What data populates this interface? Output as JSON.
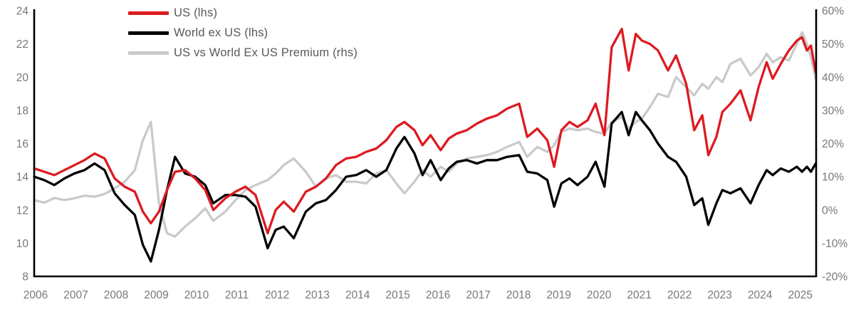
{
  "chart_data": {
    "type": "line",
    "title": "",
    "grid": false,
    "legend_position": "top-left",
    "background": "#ffffff",
    "axis_line_color": "#000000",
    "tick_text_color": "#77787b",
    "legend_text_color": "#58595b",
    "x_axis": {
      "min": 2006.0,
      "max": 2025.43,
      "tick_labels": [
        "2006",
        "2007",
        "2008",
        "2009",
        "2010",
        "2011",
        "2012",
        "2013",
        "2014",
        "2015",
        "2016",
        "2017",
        "2018",
        "2019",
        "2020",
        "2021",
        "2022",
        "2023",
        "2024",
        "2025"
      ],
      "tick_values": [
        2006,
        2007,
        2008,
        2009,
        2010,
        2011,
        2012,
        2013,
        2014,
        2015,
        2016,
        2017,
        2018,
        2019,
        2020,
        2021,
        2022,
        2023,
        2024,
        2025
      ]
    },
    "left_axis": {
      "min": 8,
      "max": 24,
      "tick_labels": [
        "8",
        "10",
        "12",
        "14",
        "16",
        "18",
        "20",
        "22",
        "24"
      ],
      "tick_values": [
        8,
        10,
        12,
        14,
        16,
        18,
        20,
        22,
        24
      ]
    },
    "right_axis": {
      "min": -20,
      "max": 60,
      "tick_labels": [
        "-20%",
        "-10%",
        "0%",
        "10%",
        "20%",
        "30%",
        "40%",
        "50%",
        "60%"
      ],
      "tick_values": [
        -20,
        -10,
        0,
        10,
        20,
        30,
        40,
        50,
        60
      ]
    },
    "x": [
      2006.0,
      2006.25,
      2006.5,
      2006.75,
      2007.0,
      2007.25,
      2007.5,
      2007.75,
      2008.0,
      2008.25,
      2008.5,
      2008.7,
      2008.9,
      2009.1,
      2009.3,
      2009.5,
      2009.75,
      2010.0,
      2010.25,
      2010.45,
      2010.75,
      2011.0,
      2011.25,
      2011.5,
      2011.8,
      2012.0,
      2012.2,
      2012.45,
      2012.75,
      2013.0,
      2013.25,
      2013.5,
      2013.75,
      2014.0,
      2014.25,
      2014.5,
      2014.75,
      2015.0,
      2015.2,
      2015.45,
      2015.65,
      2015.85,
      2016.1,
      2016.3,
      2016.5,
      2016.75,
      2017.0,
      2017.25,
      2017.5,
      2017.75,
      2018.05,
      2018.25,
      2018.5,
      2018.75,
      2018.92,
      2019.1,
      2019.3,
      2019.5,
      2019.75,
      2019.95,
      2020.17,
      2020.35,
      2020.6,
      2020.77,
      2020.95,
      2021.1,
      2021.3,
      2021.5,
      2021.75,
      2021.95,
      2022.2,
      2022.4,
      2022.6,
      2022.75,
      2022.95,
      2023.1,
      2023.3,
      2023.55,
      2023.8,
      2024.0,
      2024.2,
      2024.35,
      2024.55,
      2024.75,
      2024.95,
      2025.08,
      2025.2,
      2025.3,
      2025.42
    ],
    "series": [
      {
        "name": "US (lhs)",
        "color": "#dd1a21",
        "axis": "left",
        "values": [
          14.5,
          14.3,
          14.1,
          14.4,
          14.7,
          15.0,
          15.4,
          15.1,
          13.9,
          13.4,
          13.1,
          11.9,
          11.2,
          11.9,
          13.2,
          14.3,
          14.4,
          13.9,
          13.2,
          12.0,
          12.7,
          13.1,
          13.4,
          12.9,
          10.6,
          12.0,
          12.5,
          11.9,
          13.1,
          13.4,
          13.9,
          14.7,
          15.1,
          15.2,
          15.5,
          15.7,
          16.2,
          17.0,
          17.3,
          16.8,
          15.9,
          16.5,
          15.6,
          16.3,
          16.6,
          16.8,
          17.2,
          17.5,
          17.7,
          18.1,
          18.4,
          16.4,
          16.9,
          16.2,
          14.6,
          16.8,
          17.3,
          17.0,
          17.4,
          18.4,
          16.5,
          21.8,
          22.9,
          20.4,
          22.6,
          22.2,
          22.0,
          21.6,
          20.4,
          21.3,
          19.6,
          16.8,
          17.7,
          15.3,
          16.4,
          17.9,
          18.4,
          19.2,
          17.4,
          19.4,
          20.9,
          19.9,
          20.8,
          21.6,
          22.2,
          22.4,
          21.6,
          21.9,
          20.3
        ]
      },
      {
        "name": "World ex US (lhs)",
        "color": "#000000",
        "axis": "left",
        "values": [
          14.0,
          13.8,
          13.5,
          13.9,
          14.2,
          14.4,
          14.8,
          14.4,
          13.0,
          12.3,
          11.7,
          9.9,
          8.9,
          10.8,
          13.2,
          15.2,
          14.2,
          14.0,
          13.5,
          12.4,
          12.9,
          12.9,
          12.8,
          12.2,
          9.7,
          10.8,
          11.0,
          10.3,
          11.9,
          12.4,
          12.6,
          13.2,
          14.0,
          14.1,
          14.4,
          14.0,
          14.4,
          15.7,
          16.4,
          15.4,
          14.1,
          15.0,
          13.8,
          14.5,
          14.9,
          15.0,
          14.8,
          15.0,
          15.0,
          15.2,
          15.3,
          14.3,
          14.2,
          13.8,
          12.2,
          13.6,
          13.9,
          13.5,
          14.0,
          14.9,
          13.4,
          17.2,
          17.9,
          16.5,
          17.9,
          17.4,
          16.8,
          16.0,
          15.2,
          14.9,
          14.0,
          12.3,
          12.7,
          11.1,
          12.4,
          13.2,
          13.0,
          13.3,
          12.4,
          13.5,
          14.4,
          14.1,
          14.5,
          14.3,
          14.6,
          14.3,
          14.6,
          14.3,
          14.8
        ]
      },
      {
        "name": "US vs World Ex US Premium (rhs)",
        "color": "#c9cacb",
        "axis": "right",
        "values": [
          3.0,
          2.2,
          3.6,
          3.0,
          3.5,
          4.3,
          4.0,
          4.8,
          6.5,
          8.5,
          12.0,
          21.0,
          26.5,
          2.0,
          -7.0,
          -8.0,
          -5.0,
          -2.5,
          0.5,
          -3.3,
          -0.5,
          3.0,
          6.0,
          7.5,
          9.0,
          11.0,
          13.5,
          15.5,
          11.5,
          7.0,
          9.5,
          10.5,
          8.5,
          8.5,
          8.0,
          11.0,
          12.0,
          8.0,
          5.0,
          8.5,
          12.0,
          10.0,
          13.0,
          11.5,
          14.0,
          15.5,
          16.0,
          16.5,
          17.5,
          19.0,
          20.5,
          16.0,
          19.0,
          17.5,
          19.5,
          23.5,
          24.5,
          24.0,
          24.5,
          23.5,
          23.0,
          26.5,
          28.0,
          24.5,
          26.5,
          27.5,
          31.0,
          35.0,
          34.0,
          40.0,
          37.0,
          34.5,
          38.0,
          36.5,
          40.0,
          38.5,
          44.0,
          45.5,
          40.5,
          43.0,
          47.0,
          44.5,
          46.0,
          45.0,
          50.0,
          53.5,
          50.0,
          46.0,
          39.5
        ]
      }
    ]
  }
}
